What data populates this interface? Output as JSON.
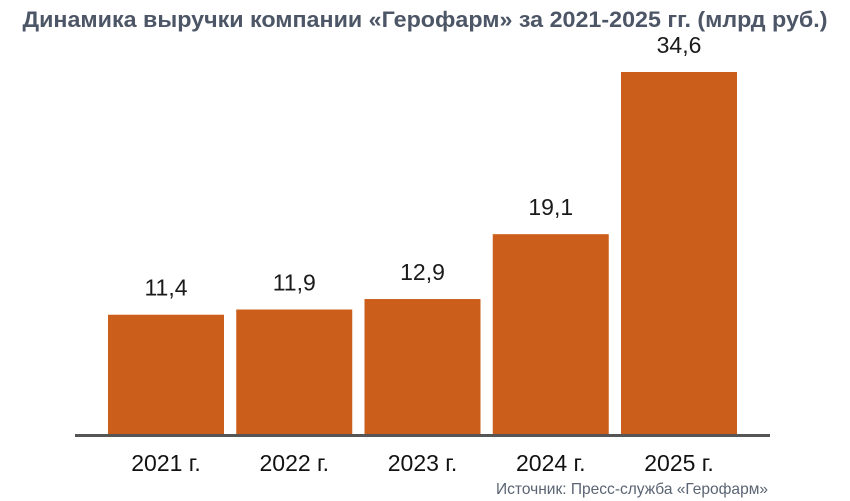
{
  "chart_data": {
    "type": "bar",
    "title": "Динамика выручки компании «Герофарм» за 2021-2025 гг. (млрд руб.)",
    "categories": [
      "2021 г.",
      "2022 г.",
      "2023 г.",
      "2024 г.",
      "2025 г."
    ],
    "values": [
      11.4,
      11.9,
      12.9,
      19.1,
      34.6
    ],
    "value_labels": [
      "11,4",
      "11,9",
      "12,9",
      "19,1",
      "34,6"
    ],
    "xlabel": "",
    "ylabel": "",
    "ylim": [
      0,
      36
    ],
    "grid": false,
    "bar_color": "#CB5E1A",
    "axis_color": "#555555",
    "source": "Источник: Пресс-служба «Герофарм»"
  }
}
